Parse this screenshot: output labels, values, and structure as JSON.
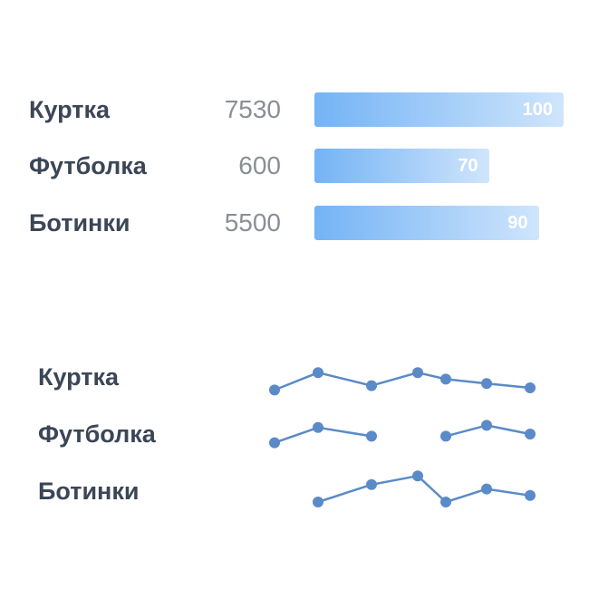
{
  "chart_data": [
    {
      "type": "bar",
      "categories": [
        "Куртка",
        "Футболка",
        "Ботинки"
      ],
      "amounts": [
        "7530",
        "600",
        "5500"
      ],
      "values": [
        100,
        70,
        90
      ],
      "value_labels": [
        "100",
        "70",
        "90"
      ],
      "xlim": [
        0,
        100
      ],
      "color_start": "#74b3f5",
      "color_end": "#cfe5fc"
    },
    {
      "type": "line",
      "categories": [
        "Куртка",
        "Футболка",
        "Ботинки"
      ],
      "x": [
        1,
        2,
        3,
        4,
        5,
        6,
        7
      ],
      "series": [
        {
          "values": [
            2,
            6,
            3,
            6,
            4.5,
            3.5,
            2.5
          ]
        },
        {
          "values": [
            3,
            6.5,
            4.5,
            null,
            4.5,
            7,
            5
          ]
        },
        {
          "values": [
            null,
            2.5,
            6.5,
            8.5,
            2.5,
            5.5,
            4
          ]
        }
      ],
      "ylim": [
        0,
        10
      ],
      "color": "#5b8ac8"
    }
  ]
}
